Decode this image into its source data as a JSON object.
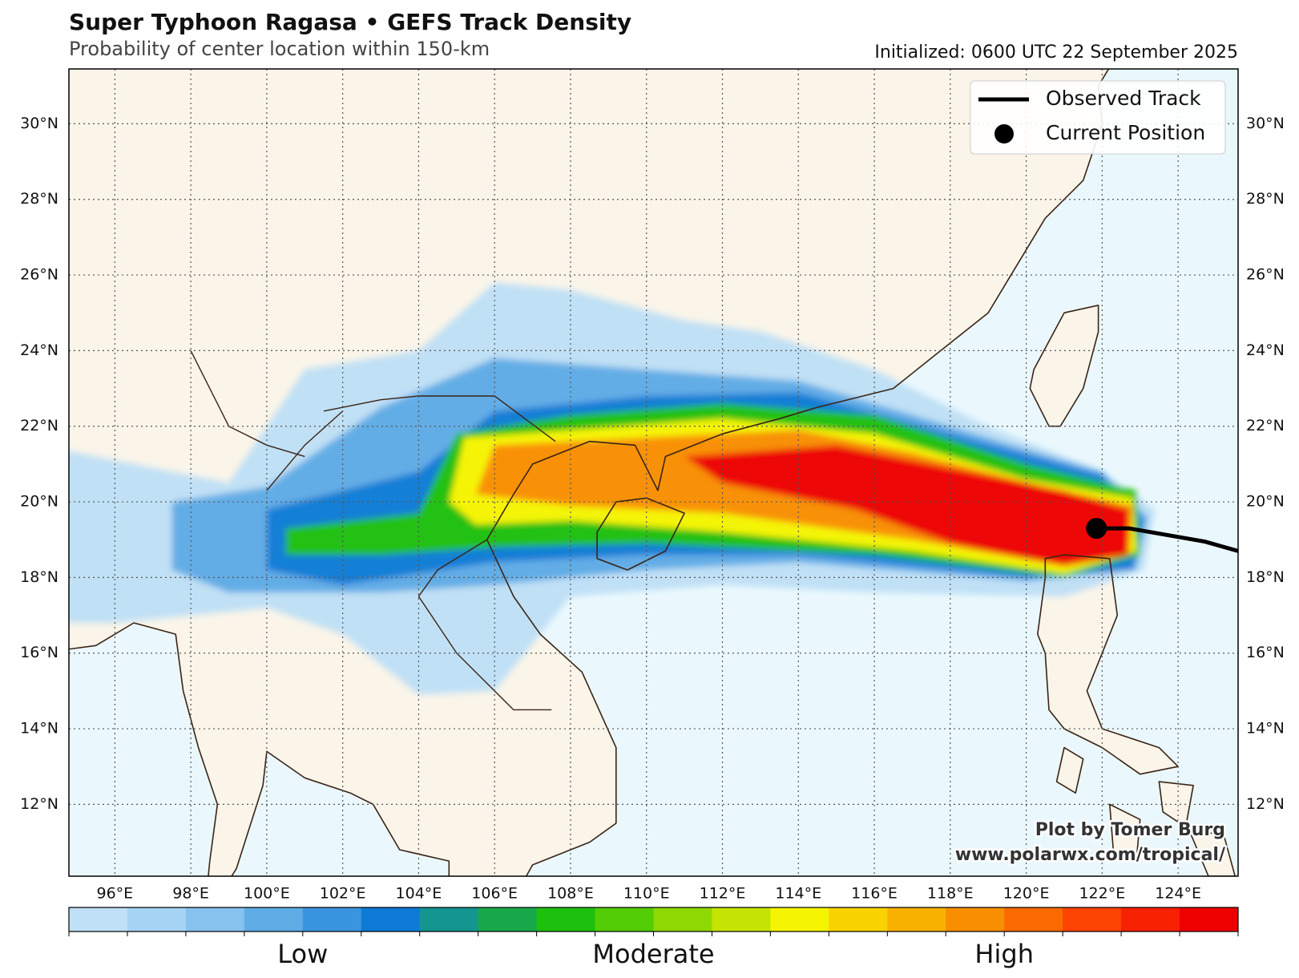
{
  "header": {
    "title": "Super Typhoon Ragasa • GEFS Track Density",
    "subtitle": "Probability of center location within 150-km",
    "initialized": "Initialized: 0600 UTC 22 September 2025"
  },
  "map": {
    "xlim": [
      94.79,
      125.58
    ],
    "ylim": [
      10.1,
      31.45
    ],
    "xticks": [
      {
        "value": 96,
        "label": "96°E"
      },
      {
        "value": 98,
        "label": "98°E"
      },
      {
        "value": 100,
        "label": "100°E"
      },
      {
        "value": 102,
        "label": "102°E"
      },
      {
        "value": 104,
        "label": "104°E"
      },
      {
        "value": 106,
        "label": "106°E"
      },
      {
        "value": 108,
        "label": "108°E"
      },
      {
        "value": 110,
        "label": "110°E"
      },
      {
        "value": 112,
        "label": "112°E"
      },
      {
        "value": 114,
        "label": "114°E"
      },
      {
        "value": 116,
        "label": "116°E"
      },
      {
        "value": 118,
        "label": "118°E"
      },
      {
        "value": 120,
        "label": "120°E"
      },
      {
        "value": 122,
        "label": "122°E"
      },
      {
        "value": 124,
        "label": "124°E"
      }
    ],
    "yticks": [
      {
        "value": 12,
        "label": "12°N"
      },
      {
        "value": 14,
        "label": "14°N"
      },
      {
        "value": 16,
        "label": "16°N"
      },
      {
        "value": 18,
        "label": "18°N"
      },
      {
        "value": 20,
        "label": "20°N"
      },
      {
        "value": 22,
        "label": "22°N"
      },
      {
        "value": 24,
        "label": "24°N"
      },
      {
        "value": 26,
        "label": "26°N"
      },
      {
        "value": 28,
        "label": "28°N"
      },
      {
        "value": 30,
        "label": "30°N"
      }
    ],
    "grid": true,
    "observed_track": {
      "name": "Observed Track",
      "color": "#000000",
      "lon": [
        125.58,
        124.7,
        122.7,
        121.9
      ],
      "lat": [
        18.7,
        18.95,
        19.3,
        19.3
      ]
    },
    "current_position": {
      "name": "Current Position",
      "color": "#000000",
      "lon": 121.85,
      "lat": 19.3
    }
  },
  "colorbar": {
    "colors": [
      "#bfe0f6",
      "#a6d3f3",
      "#87c2ee",
      "#5eabe6",
      "#3a95e0",
      "#0d7bd6",
      "#14958f",
      "#17a84a",
      "#1ec00e",
      "#52cd06",
      "#8fd804",
      "#c6e403",
      "#f5f402",
      "#f8d301",
      "#f8b101",
      "#f98e01",
      "#fb6a01",
      "#fd4301",
      "#f72001",
      "#ee0000"
    ],
    "labels": [
      "Low",
      "Moderate",
      "High"
    ]
  },
  "credit": {
    "line1": "Plot by Tomer Burg",
    "line2": "www.polarwx.com/tropical/"
  }
}
